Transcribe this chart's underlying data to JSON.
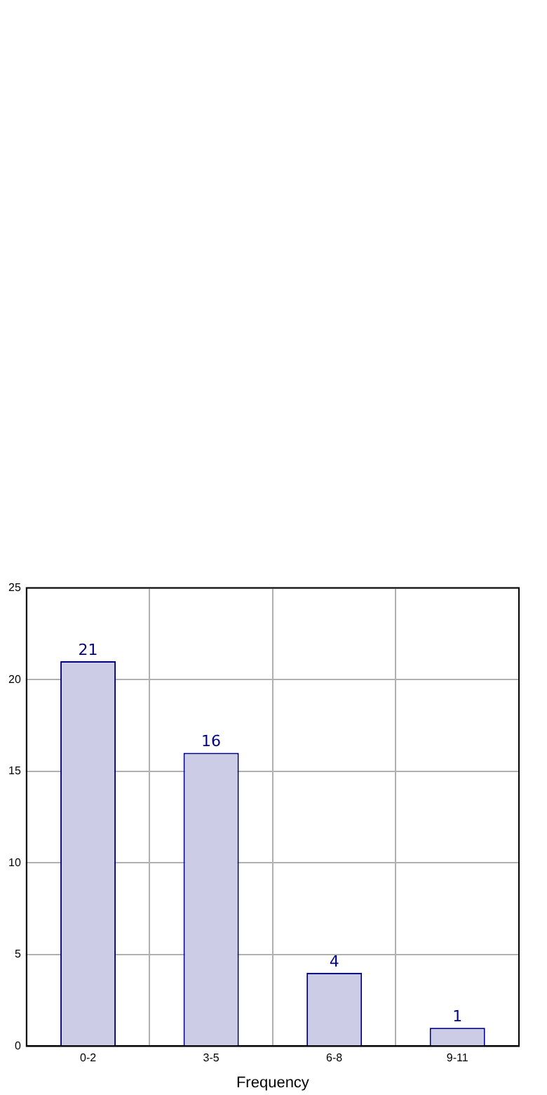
{
  "chart_data": {
    "type": "bar",
    "xlabel": "Frequency",
    "categories": [
      "0-2",
      "3-5",
      "6-8",
      "9-11"
    ],
    "values": [
      21,
      16,
      4,
      1
    ],
    "color": "#ccccE6",
    "ylim": [
      0,
      25
    ],
    "yticks": [
      0,
      5,
      10,
      15,
      20,
      25
    ],
    "grid": true,
    "data_labels": true,
    "legend": false
  }
}
